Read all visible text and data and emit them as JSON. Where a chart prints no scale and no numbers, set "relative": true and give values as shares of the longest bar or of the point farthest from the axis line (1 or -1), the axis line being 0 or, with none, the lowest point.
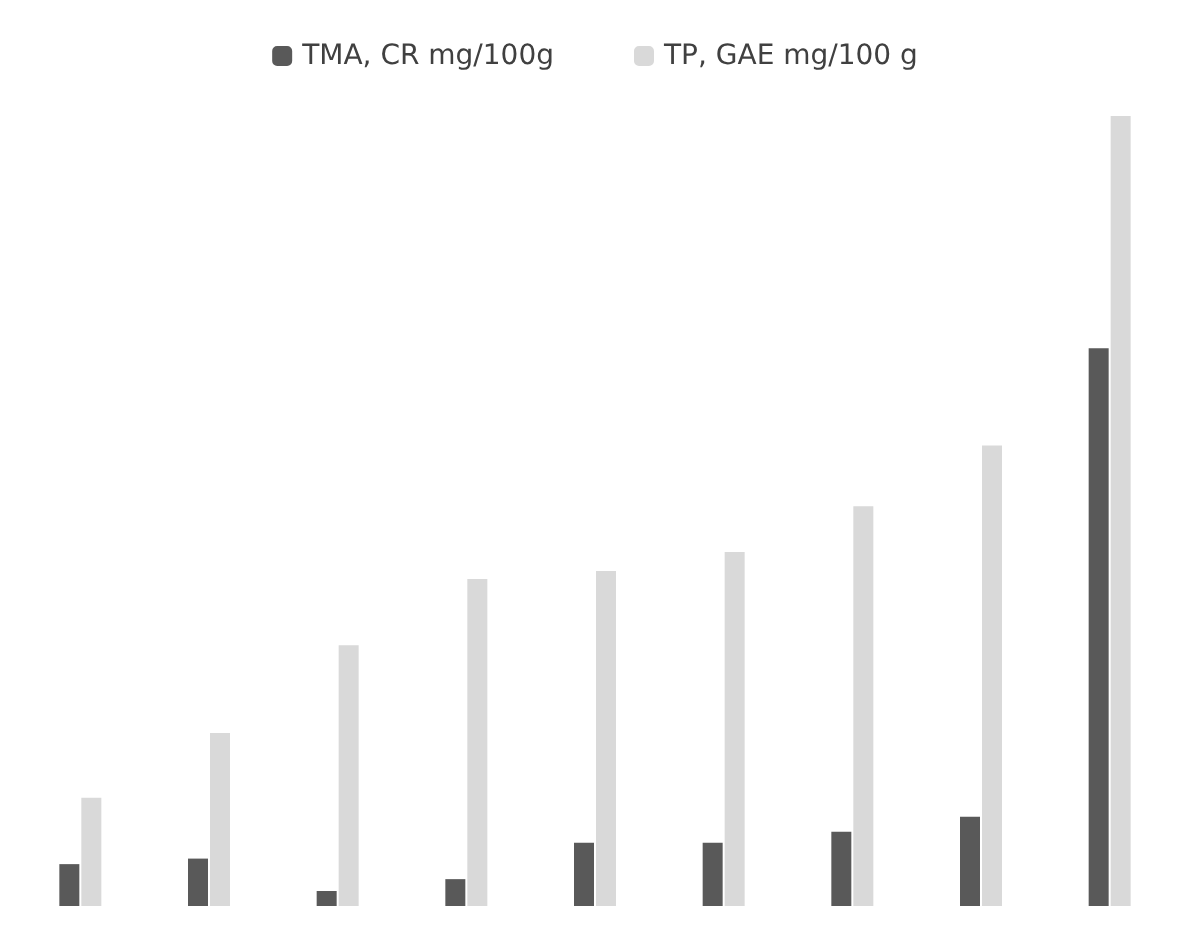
{
  "chart_data": {
    "type": "bar",
    "relative": true,
    "categories": [
      null,
      null,
      null,
      null,
      null,
      null,
      null,
      null,
      null
    ],
    "legend": "top",
    "series": [
      {
        "name": "TMA, CR mg/100g",
        "color": "#595959",
        "values": [
          0.053,
          0.06,
          0.019,
          0.034,
          0.08,
          0.08,
          0.094,
          0.113,
          0.706
        ]
      },
      {
        "name": "TP, GAE mg/100 g",
        "color": "#d9d9d9",
        "values": [
          0.137,
          0.219,
          0.33,
          0.414,
          0.424,
          0.448,
          0.506,
          0.583,
          1
        ]
      }
    ]
  }
}
